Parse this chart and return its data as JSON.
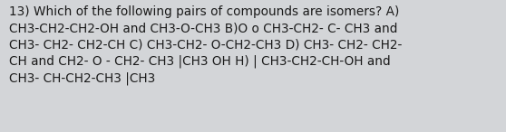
{
  "text": "13) Which of the following pairs of compounds are isomers? A)\nCH3-CH2-CH2-OH and CH3-O-CH3 B)O o CH3-CH2- C- CH3 and\nCH3- CH2- CH2-CH C) CH3-CH2- O-CH2-CH3 D) CH3- CH2- CH2-\nCH and CH2- O - CH2- CH3 |CH3 OH H) | CH3-CH2-CH-OH and\nCH3- CH-CH2-CH3 |CH3",
  "background_color": "#d3d5d8",
  "text_color": "#1a1a1a",
  "font_size": 9.8,
  "fig_width": 5.58,
  "fig_height": 1.46,
  "dpi": 100
}
